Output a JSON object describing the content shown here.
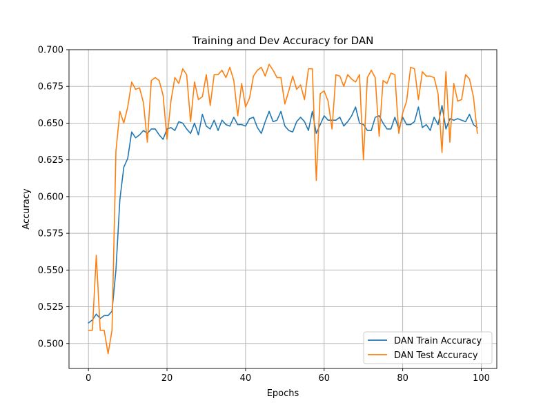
{
  "chart_data": {
    "type": "line",
    "title": "Training and Dev Accuracy for DAN",
    "xlabel": "Epochs",
    "ylabel": "Accuracy",
    "xlim": [
      -4.95,
      103.95
    ],
    "ylim": [
      0.483,
      0.7
    ],
    "xticks": [
      0,
      20,
      40,
      60,
      80,
      100
    ],
    "yticks": [
      0.5,
      0.525,
      0.55,
      0.575,
      0.6,
      0.625,
      0.65,
      0.675,
      0.7
    ],
    "ytick_labels": [
      "0.500",
      "0.525",
      "0.550",
      "0.575",
      "0.600",
      "0.625",
      "0.650",
      "0.675",
      "0.700"
    ],
    "xtick_labels": [
      "0",
      "20",
      "40",
      "60",
      "80",
      "100"
    ],
    "grid": true,
    "legend_position": "bottom-right",
    "series": [
      {
        "name": "DAN Train Accuracy",
        "color": "#1f77b4",
        "values": [
          0.514,
          0.516,
          0.52,
          0.517,
          0.519,
          0.519,
          0.522,
          0.55,
          0.598,
          0.62,
          0.626,
          0.644,
          0.64,
          0.642,
          0.645,
          0.643,
          0.646,
          0.646,
          0.642,
          0.639,
          0.646,
          0.647,
          0.645,
          0.651,
          0.65,
          0.646,
          0.643,
          0.65,
          0.642,
          0.656,
          0.648,
          0.646,
          0.652,
          0.645,
          0.652,
          0.649,
          0.648,
          0.654,
          0.649,
          0.649,
          0.648,
          0.653,
          0.654,
          0.647,
          0.643,
          0.651,
          0.658,
          0.651,
          0.652,
          0.658,
          0.648,
          0.645,
          0.644,
          0.651,
          0.654,
          0.651,
          0.645,
          0.658,
          0.643,
          0.649,
          0.655,
          0.652,
          0.652,
          0.652,
          0.654,
          0.648,
          0.651,
          0.655,
          0.661,
          0.65,
          0.649,
          0.645,
          0.645,
          0.654,
          0.655,
          0.65,
          0.646,
          0.646,
          0.654,
          0.646,
          0.654,
          0.649,
          0.649,
          0.651,
          0.661,
          0.647,
          0.649,
          0.645,
          0.654,
          0.649,
          0.662,
          0.646,
          0.653,
          0.652,
          0.653,
          0.652,
          0.651,
          0.656,
          0.649,
          0.647
        ]
      },
      {
        "name": "DAN Test Accuracy",
        "color": "#ff7f0e",
        "values": [
          0.509,
          0.509,
          0.56,
          0.509,
          0.509,
          0.493,
          0.509,
          0.631,
          0.658,
          0.65,
          0.661,
          0.678,
          0.673,
          0.674,
          0.664,
          0.637,
          0.679,
          0.681,
          0.679,
          0.669,
          0.639,
          0.665,
          0.681,
          0.677,
          0.687,
          0.683,
          0.651,
          0.678,
          0.666,
          0.668,
          0.683,
          0.662,
          0.683,
          0.683,
          0.686,
          0.681,
          0.688,
          0.679,
          0.655,
          0.677,
          0.661,
          0.667,
          0.682,
          0.686,
          0.688,
          0.682,
          0.69,
          0.686,
          0.681,
          0.681,
          0.663,
          0.672,
          0.682,
          0.673,
          0.676,
          0.666,
          0.687,
          0.687,
          0.611,
          0.67,
          0.672,
          0.665,
          0.646,
          0.683,
          0.682,
          0.675,
          0.683,
          0.68,
          0.678,
          0.683,
          0.625,
          0.681,
          0.686,
          0.681,
          0.641,
          0.679,
          0.677,
          0.684,
          0.683,
          0.643,
          0.657,
          0.665,
          0.688,
          0.687,
          0.666,
          0.685,
          0.682,
          0.682,
          0.681,
          0.67,
          0.63,
          0.685,
          0.637,
          0.677,
          0.665,
          0.666,
          0.683,
          0.68,
          0.668,
          0.643
        ]
      }
    ]
  }
}
